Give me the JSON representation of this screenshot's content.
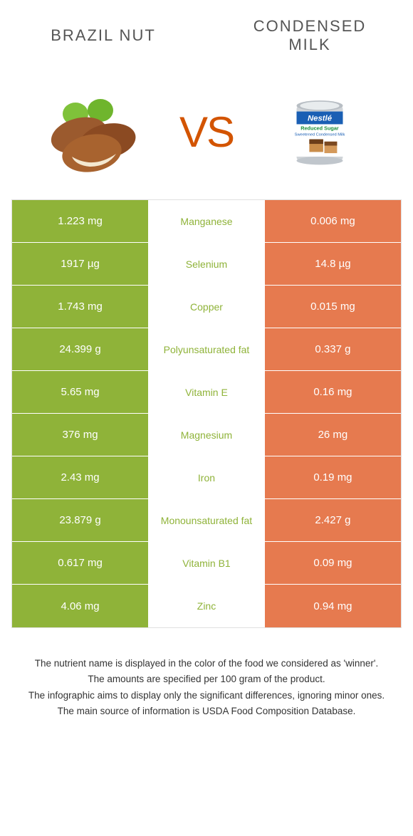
{
  "header": {
    "left_title": "BRAZIL NUT",
    "right_title_l1": "CONDENSED",
    "right_title_l2": "MILK"
  },
  "vs_label": "VS",
  "colors": {
    "left": "#8fb339",
    "right": "#e67a4f",
    "mid_text_left_win": "#8fb339",
    "mid_text_right_win": "#e67a4f",
    "text_light": "#ffffff",
    "border": "#e0e0e0"
  },
  "rows": [
    {
      "left": "1.223 mg",
      "mid": "Manganese",
      "right": "0.006 mg",
      "winner": "left"
    },
    {
      "left": "1917 µg",
      "mid": "Selenium",
      "right": "14.8 µg",
      "winner": "left"
    },
    {
      "left": "1.743 mg",
      "mid": "Copper",
      "right": "0.015 mg",
      "winner": "left"
    },
    {
      "left": "24.399 g",
      "mid": "Polyunsaturated fat",
      "right": "0.337 g",
      "winner": "left"
    },
    {
      "left": "5.65 mg",
      "mid": "Vitamin E",
      "right": "0.16 mg",
      "winner": "left"
    },
    {
      "left": "376 mg",
      "mid": "Magnesium",
      "right": "26 mg",
      "winner": "left"
    },
    {
      "left": "2.43 mg",
      "mid": "Iron",
      "right": "0.19 mg",
      "winner": "left"
    },
    {
      "left": "23.879 g",
      "mid": "Monounsaturated fat",
      "right": "2.427 g",
      "winner": "left"
    },
    {
      "left": "0.617 mg",
      "mid": "Vitamin B1",
      "right": "0.09 mg",
      "winner": "left"
    },
    {
      "left": "4.06 mg",
      "mid": "Zinc",
      "right": "0.94 mg",
      "winner": "left"
    }
  ],
  "footnotes": {
    "l1": "The nutrient name is displayed in the color of the food we considered as 'winner'.",
    "l2": "The amounts are specified per 100 gram of the product.",
    "l3": "The infographic aims to display only the significant differences, ignoring minor ones.",
    "l4": "The main source of information is USDA Food Composition Database."
  },
  "images": {
    "left_alt": "brazil-nuts",
    "right_alt": "condensed-milk-can"
  }
}
